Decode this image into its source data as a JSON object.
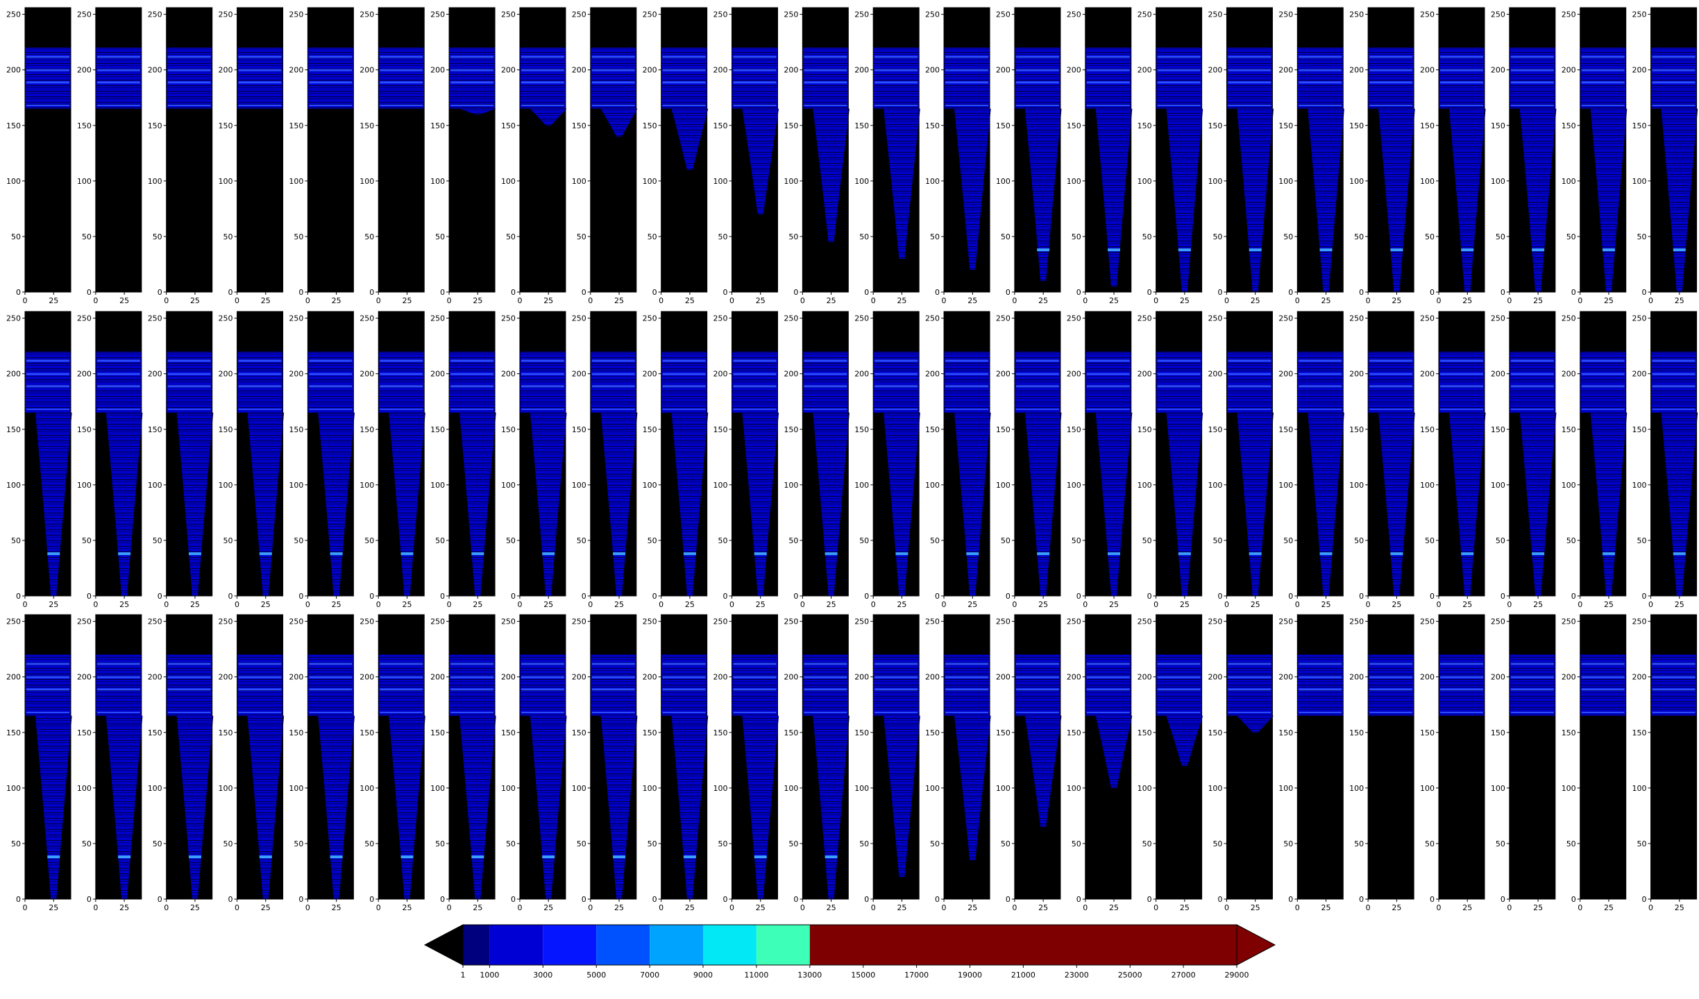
{
  "chart_data": {
    "type": "heatmap",
    "grid": {
      "rows": 3,
      "cols": 24
    },
    "panel_axes": {
      "x_ticks": [
        0,
        25
      ],
      "y_ticks": [
        0,
        50,
        100,
        150,
        200,
        250
      ],
      "xlim": [
        0,
        40
      ],
      "ylim": [
        0,
        256
      ]
    },
    "panel_pattern": {
      "band_bottom": 165,
      "band_top": 220,
      "bright_lines_y": [
        168,
        189,
        200,
        212
      ],
      "hotspot_y": 38,
      "funnel_center_x": 25,
      "funnel_depths_row1": [
        165,
        165,
        165,
        165,
        165,
        165,
        160,
        150,
        140,
        110,
        70,
        45,
        30,
        20,
        10,
        5,
        0,
        0,
        0,
        0,
        0,
        0,
        0,
        0
      ],
      "funnel_depths_row2": [
        0,
        0,
        0,
        0,
        0,
        0,
        0,
        0,
        0,
        0,
        0,
        0,
        0,
        0,
        0,
        0,
        0,
        0,
        0,
        0,
        0,
        0,
        0,
        0
      ],
      "funnel_depths_row3": [
        0,
        0,
        0,
        0,
        0,
        0,
        0,
        0,
        0,
        0,
        0,
        0,
        20,
        35,
        65,
        100,
        120,
        150,
        165,
        165,
        165,
        165,
        165,
        165
      ]
    },
    "colorbar": {
      "orientation": "horizontal",
      "extend": "both",
      "tick_labels": [
        "1",
        "1000",
        "3000",
        "5000",
        "7000",
        "9000",
        "11000",
        "13000",
        "15000",
        "17000",
        "19000",
        "21000",
        "23000",
        "25000",
        "27000",
        "29000"
      ],
      "bins": [
        {
          "from": 1,
          "to": 1000,
          "color": "#00007f"
        },
        {
          "from": 1000,
          "to": 3000,
          "color": "#0000d4"
        },
        {
          "from": 3000,
          "to": 5000,
          "color": "#0515ff"
        },
        {
          "from": 5000,
          "to": 7000,
          "color": "#0052ff"
        },
        {
          "from": 7000,
          "to": 9000,
          "color": "#00a4ff"
        },
        {
          "from": 9000,
          "to": 11000,
          "color": "#02e8f4"
        },
        {
          "from": 11000,
          "to": 13000,
          "color": "#3effb8"
        },
        {
          "from": 13000,
          "to": 29000,
          "color": "#7f0000"
        }
      ],
      "under_color": "#000000",
      "over_color": "#7f0000"
    }
  }
}
